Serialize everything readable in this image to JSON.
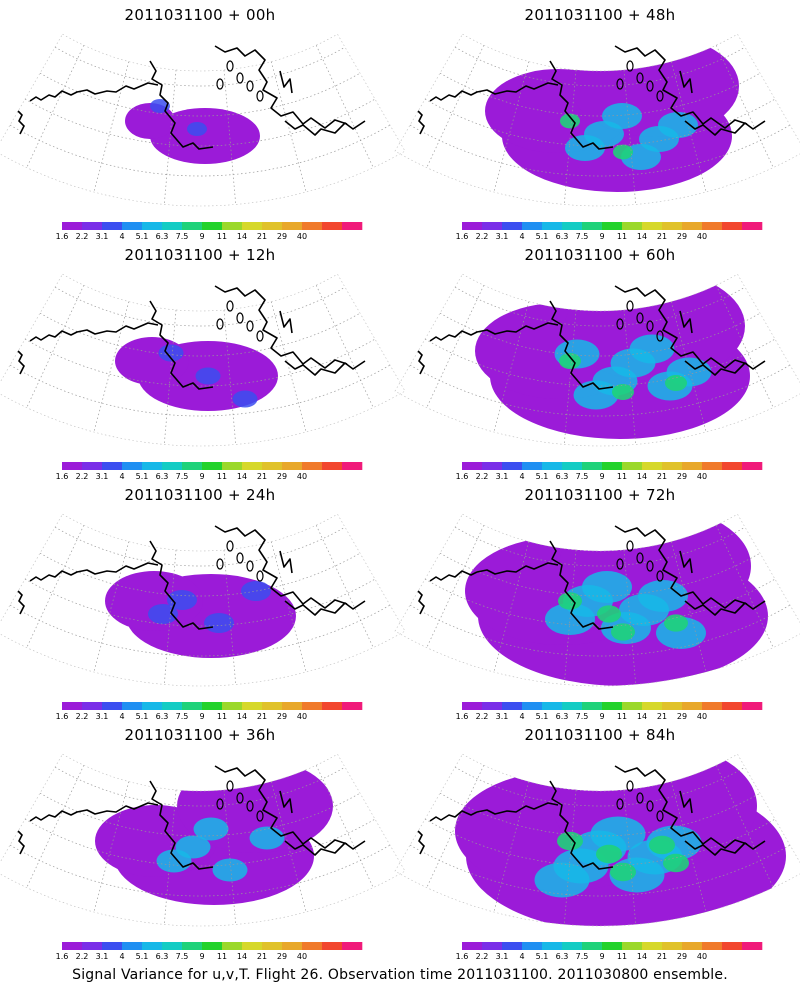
{
  "panels": [
    {
      "title": "2011031100 + 00h",
      "intensity": 0
    },
    {
      "title": "2011031100 + 48h",
      "intensity": 4
    },
    {
      "title": "2011031100 + 12h",
      "intensity": 1
    },
    {
      "title": "2011031100 + 60h",
      "intensity": 5
    },
    {
      "title": "2011031100 + 24h",
      "intensity": 2
    },
    {
      "title": "2011031100 + 72h",
      "intensity": 6
    },
    {
      "title": "2011031100 + 36h",
      "intensity": 3
    },
    {
      "title": "2011031100 + 84h",
      "intensity": 7
    }
  ],
  "colorbar": {
    "colors": [
      "#9b1bd8",
      "#7a2ee8",
      "#3b4ef0",
      "#1f8ff2",
      "#16b8e8",
      "#13ccc4",
      "#1fd27a",
      "#23d22b",
      "#9bd82a",
      "#d6d82a",
      "#e0c22a",
      "#e8a82a",
      "#f07a2a",
      "#f2462e",
      "#f01a7a"
    ],
    "labels": [
      "1.6",
      "2.2",
      "3.1",
      "4",
      "5.1",
      "6.3",
      "7.5",
      "9",
      "11",
      "14",
      "21",
      "29",
      "40"
    ]
  },
  "footer": "Signal Variance for u,v,T. Flight 26. Observation time 2011031100. 2011030800 ensemble."
}
